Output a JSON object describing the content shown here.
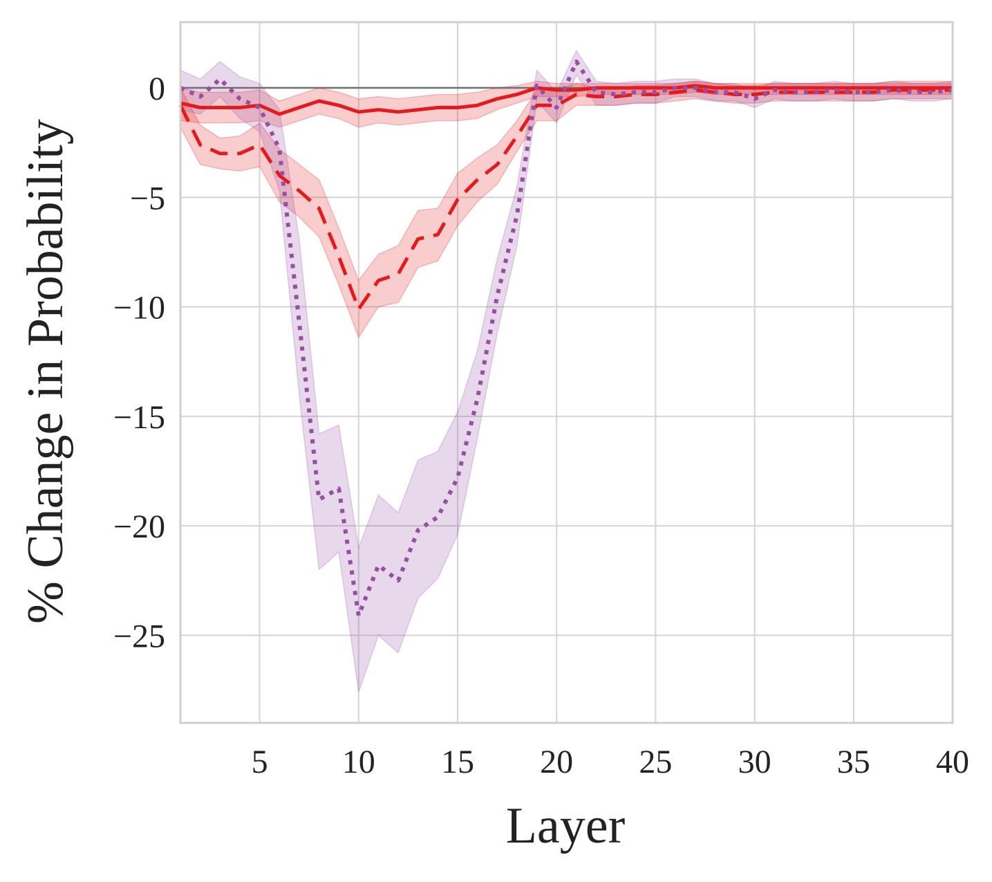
{
  "chart_data": {
    "type": "line",
    "title": "",
    "xlabel": "Layer",
    "ylabel": "% Change in Probability",
    "xlim": [
      1,
      40
    ],
    "ylim": [
      -29,
      3
    ],
    "xticks": [
      5,
      10,
      15,
      20,
      25,
      30,
      35,
      40
    ],
    "yticks": [
      0,
      -5,
      -10,
      -15,
      -20,
      -25
    ],
    "xtick_labels": [
      "5",
      "10",
      "15",
      "20",
      "25",
      "30",
      "35",
      "40"
    ],
    "ytick_labels": [
      "0",
      "−5",
      "−10",
      "−15",
      "−20",
      "−25"
    ],
    "grid": true,
    "legend": "none",
    "reference_line": 0,
    "x": [
      1,
      2,
      3,
      4,
      5,
      6,
      7,
      8,
      9,
      10,
      11,
      12,
      13,
      14,
      15,
      16,
      17,
      18,
      19,
      20,
      21,
      22,
      23,
      24,
      25,
      26,
      27,
      28,
      29,
      30,
      31,
      32,
      33,
      34,
      35,
      36,
      37,
      38,
      39,
      40
    ],
    "series": [
      {
        "style": "solid",
        "color": "#e41a1c",
        "values": [
          -0.7,
          -0.9,
          -0.9,
          -0.9,
          -0.8,
          -1.2,
          -0.9,
          -0.6,
          -0.8,
          -1.1,
          -1.0,
          -1.1,
          -1.0,
          -0.9,
          -0.9,
          -0.8,
          -0.5,
          -0.3,
          0.0,
          -0.1,
          -0.1,
          0.0,
          0.0,
          0.0,
          0.0,
          0.0,
          0.1,
          0.0,
          0.0,
          0.0,
          0.0,
          0.0,
          0.0,
          0.0,
          0.0,
          0.0,
          0.0,
          0.0,
          0.0,
          0.0
        ],
        "lower": [
          -1.5,
          -1.6,
          -1.6,
          -1.6,
          -1.5,
          -1.8,
          -1.5,
          -1.2,
          -1.4,
          -1.8,
          -1.6,
          -1.7,
          -1.6,
          -1.5,
          -1.5,
          -1.4,
          -1.0,
          -0.7,
          -0.4,
          -0.4,
          -0.4,
          -0.3,
          -0.3,
          -0.3,
          -0.3,
          -0.3,
          -0.2,
          -0.3,
          -0.3,
          -0.3,
          -0.3,
          -0.3,
          -0.3,
          -0.3,
          -0.3,
          -0.3,
          -0.3,
          -0.3,
          -0.3,
          -0.3
        ],
        "upper": [
          0.0,
          -0.2,
          -0.2,
          -0.2,
          -0.1,
          -0.6,
          -0.3,
          0.0,
          -0.2,
          -0.5,
          -0.4,
          -0.5,
          -0.4,
          -0.3,
          -0.3,
          -0.2,
          0.0,
          0.1,
          0.3,
          0.2,
          0.2,
          0.2,
          0.2,
          0.2,
          0.2,
          0.2,
          0.3,
          0.2,
          0.2,
          0.2,
          0.2,
          0.2,
          0.2,
          0.2,
          0.2,
          0.2,
          0.2,
          0.2,
          0.2,
          0.2
        ]
      },
      {
        "style": "dashed",
        "color": "#e41a1c",
        "values": [
          -0.8,
          -2.6,
          -3.0,
          -3.0,
          -2.6,
          -4.0,
          -4.7,
          -5.5,
          -7.7,
          -10.1,
          -8.8,
          -8.5,
          -6.9,
          -6.7,
          -5.1,
          -4.2,
          -3.5,
          -2.2,
          -0.8,
          -0.8,
          -0.3,
          -0.4,
          -0.4,
          -0.3,
          -0.3,
          -0.2,
          -0.1,
          -0.2,
          -0.3,
          -0.3,
          -0.2,
          -0.2,
          -0.2,
          -0.2,
          -0.2,
          -0.2,
          -0.1,
          -0.1,
          -0.1,
          -0.1
        ],
        "lower": [
          -1.8,
          -3.5,
          -3.7,
          -3.8,
          -3.6,
          -5.2,
          -5.9,
          -6.8,
          -9.0,
          -11.4,
          -10.0,
          -9.8,
          -8.2,
          -7.9,
          -6.3,
          -5.2,
          -4.4,
          -2.9,
          -1.5,
          -1.5,
          -0.8,
          -0.8,
          -0.8,
          -0.7,
          -0.7,
          -0.6,
          -0.5,
          -0.6,
          -0.7,
          -0.7,
          -0.6,
          -0.6,
          -0.6,
          -0.6,
          -0.6,
          -0.6,
          -0.5,
          -0.5,
          -0.5,
          -0.5
        ],
        "upper": [
          0.0,
          -1.7,
          -2.3,
          -2.2,
          -1.6,
          -2.8,
          -3.5,
          -4.2,
          -6.4,
          -8.8,
          -7.6,
          -7.2,
          -5.6,
          -5.5,
          -3.9,
          -3.2,
          -2.6,
          -1.5,
          -0.1,
          -0.1,
          0.2,
          0.0,
          0.0,
          0.1,
          0.1,
          0.2,
          0.3,
          0.2,
          0.1,
          0.1,
          0.2,
          0.2,
          0.2,
          0.2,
          0.2,
          0.2,
          0.3,
          0.3,
          0.3,
          0.3
        ]
      },
      {
        "style": "dotted",
        "color": "#984ea3",
        "values": [
          0.0,
          -0.4,
          0.4,
          -0.5,
          -0.9,
          -2.8,
          -10.7,
          -18.8,
          -18.3,
          -24.1,
          -21.8,
          -22.5,
          -20.2,
          -19.6,
          -17.8,
          -14.2,
          -9.5,
          -5.8,
          0.1,
          -0.9,
          1.2,
          -0.2,
          -0.3,
          -0.2,
          -0.2,
          0.0,
          0.0,
          -0.2,
          -0.2,
          -0.5,
          -0.1,
          -0.2,
          -0.2,
          -0.1,
          -0.2,
          -0.2,
          -0.1,
          -0.2,
          -0.2,
          -0.1
        ],
        "lower": [
          -1.0,
          -1.2,
          -0.4,
          -1.4,
          -2.0,
          -4.7,
          -14.0,
          -22.0,
          -21.2,
          -27.6,
          -25.0,
          -25.8,
          -23.3,
          -22.4,
          -20.4,
          -16.0,
          -11.2,
          -7.2,
          -0.6,
          -1.6,
          0.6,
          -0.8,
          -0.8,
          -0.7,
          -0.7,
          -0.4,
          -0.4,
          -0.6,
          -0.6,
          -0.9,
          -0.5,
          -0.6,
          -0.6,
          -0.5,
          -0.6,
          -0.6,
          -0.5,
          -0.6,
          -0.6,
          -0.5
        ],
        "upper": [
          0.8,
          0.4,
          1.2,
          0.5,
          0.2,
          -1.0,
          -6.9,
          -15.8,
          -15.4,
          -21.0,
          -18.6,
          -19.4,
          -17.0,
          -16.6,
          -14.8,
          -12.0,
          -7.8,
          -4.5,
          0.8,
          -0.2,
          1.7,
          0.3,
          0.2,
          0.3,
          0.3,
          0.4,
          0.4,
          0.2,
          0.2,
          -0.1,
          0.3,
          0.2,
          0.2,
          0.3,
          0.2,
          0.2,
          0.3,
          0.2,
          0.2,
          0.3
        ]
      }
    ]
  }
}
